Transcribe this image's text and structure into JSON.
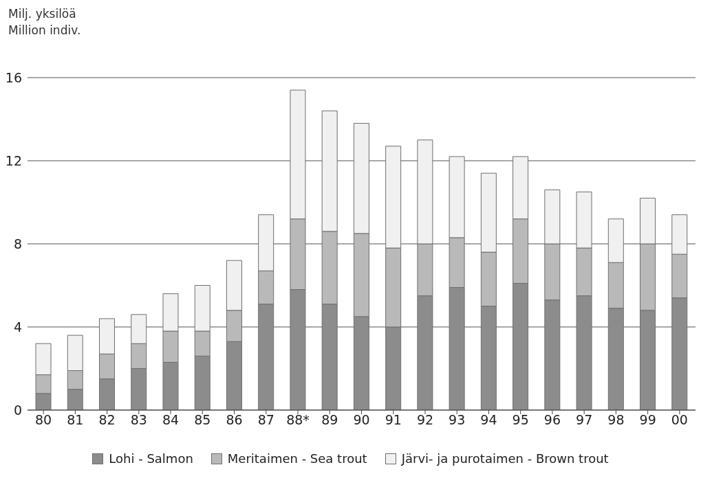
{
  "chart_data": {
    "type": "bar",
    "stacked": true,
    "ylabel": "Milj. yksilöä\nMillion indiv.",
    "categories": [
      "80",
      "81",
      "82",
      "83",
      "84",
      "85",
      "86",
      "87",
      "88*",
      "89",
      "90",
      "91",
      "92",
      "93",
      "94",
      "95",
      "96",
      "97",
      "98",
      "99",
      "00"
    ],
    "series": [
      {
        "name": "Lohi - Salmon",
        "color": "#8c8c8c",
        "values": [
          0.8,
          1.0,
          1.5,
          2.0,
          2.3,
          2.6,
          3.3,
          5.1,
          5.8,
          5.1,
          4.5,
          4.0,
          5.5,
          5.9,
          5.0,
          6.1,
          5.3,
          5.5,
          4.9,
          4.8,
          5.4
        ]
      },
      {
        "name": "Meritaimen - Sea trout",
        "color": "#b9b9b9",
        "values": [
          0.9,
          0.9,
          1.2,
          1.2,
          1.5,
          1.2,
          1.5,
          1.6,
          3.4,
          3.5,
          4.0,
          3.8,
          2.5,
          2.4,
          2.6,
          3.1,
          2.7,
          2.3,
          2.2,
          3.2,
          2.1
        ]
      },
      {
        "name": "Järvi- ja purotaimen - Brown trout",
        "color": "#f0f0f0",
        "values": [
          1.5,
          1.7,
          1.7,
          1.4,
          1.8,
          2.2,
          2.4,
          2.7,
          6.2,
          5.8,
          5.3,
          4.9,
          5.0,
          3.9,
          3.8,
          3.0,
          2.6,
          2.7,
          2.1,
          2.2,
          1.9
        ]
      }
    ],
    "ylim": [
      0,
      16
    ],
    "yticks": [
      0,
      4,
      8,
      12,
      16
    ],
    "grid": "y",
    "legend": "bottom"
  }
}
